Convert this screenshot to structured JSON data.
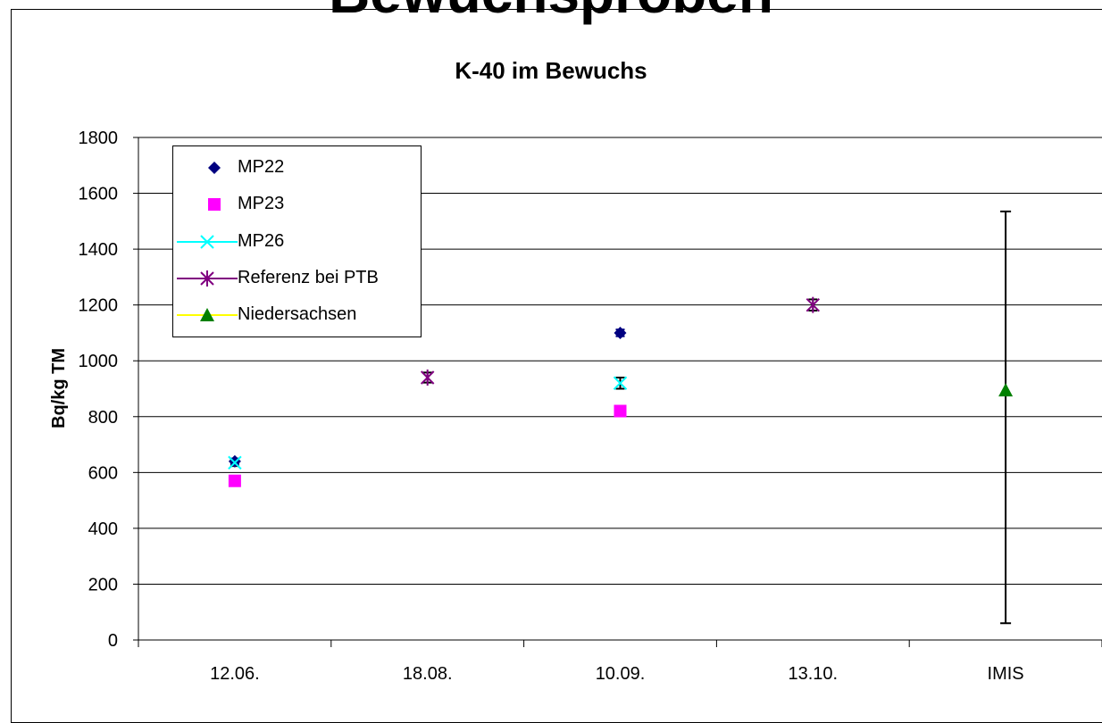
{
  "page": {
    "title": "Bewuchsproben"
  },
  "chart_data": {
    "type": "scatter",
    "title": "K-40 im Bewuchs",
    "xlabel": "",
    "ylabel": "Bq/kg TM",
    "categories": [
      "12.06.",
      "18.08.",
      "10.09.",
      "13.10.",
      "IMIS"
    ],
    "ylim": [
      0,
      1800
    ],
    "yticks": [
      0,
      200,
      400,
      600,
      800,
      1000,
      1200,
      1400,
      1600,
      1800
    ],
    "grid": "horizontal",
    "legend_position": "top-left",
    "series": [
      {
        "name": "MP22",
        "marker": "diamond",
        "color": "#000080",
        "points": [
          {
            "category": "12.06.",
            "y": 640,
            "err": 10
          },
          {
            "category": "10.09.",
            "y": 1100,
            "err": 12
          }
        ]
      },
      {
        "name": "MP23",
        "marker": "square",
        "color": "#ff00ff",
        "points": [
          {
            "category": "12.06.",
            "y": 570
          },
          {
            "category": "10.09.",
            "y": 820
          }
        ]
      },
      {
        "name": "MP26",
        "marker": "x",
        "color": "#00ffff",
        "points": [
          {
            "category": "12.06.",
            "y": 635,
            "err": 12
          },
          {
            "category": "10.09.",
            "y": 920,
            "err": 20
          }
        ]
      },
      {
        "name": "Referenz bei PTB",
        "marker": "star",
        "color": "#800080",
        "points": [
          {
            "category": "18.08.",
            "y": 940,
            "err": 18
          },
          {
            "category": "13.10.",
            "y": 1200,
            "err": 20
          }
        ]
      },
      {
        "name": "Niedersachsen",
        "marker": "triangle",
        "color": "#008000",
        "legend_line_color": "#ffff00",
        "points": [
          {
            "category": "IMIS",
            "y": 895,
            "err_low": 835,
            "err_high": 640
          }
        ]
      }
    ]
  }
}
